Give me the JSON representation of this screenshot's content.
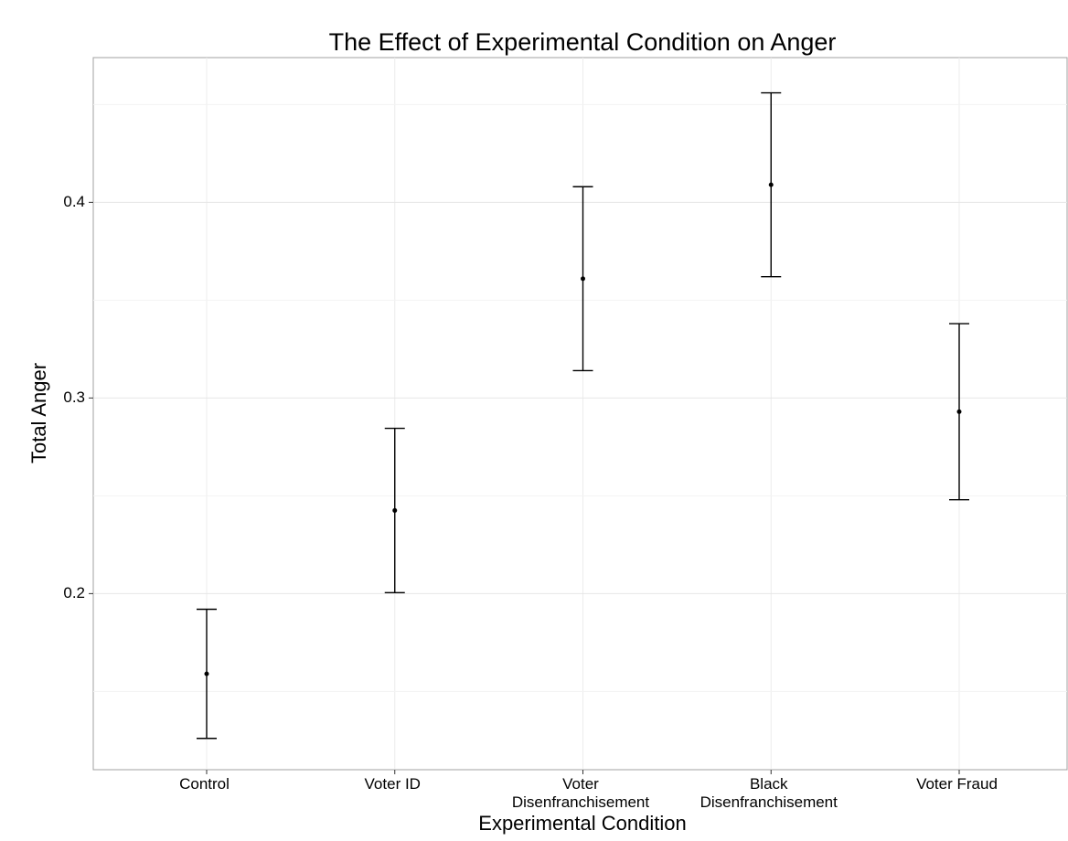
{
  "chart_data": {
    "type": "errorbar",
    "title": "The Effect of Experimental Condition on Anger",
    "x_label": "Experimental Condition",
    "y_label": "Total Anger",
    "categories": [
      "Control",
      "Voter ID",
      "Voter Disenfranchisement",
      "Black Disenfranchisement",
      "Voter Fraud"
    ],
    "values": [
      0.159,
      0.2425,
      0.361,
      0.409,
      0.293
    ],
    "errors": [
      0.033,
      0.042,
      0.047,
      0.047,
      0.045
    ],
    "color": "#000000",
    "ylim": [
      0.11,
      0.474
    ],
    "yticks": [
      0.2,
      0.3,
      0.4
    ],
    "minor_yticks": [
      0.15,
      0.25,
      0.35,
      0.45
    ],
    "grid": true
  }
}
